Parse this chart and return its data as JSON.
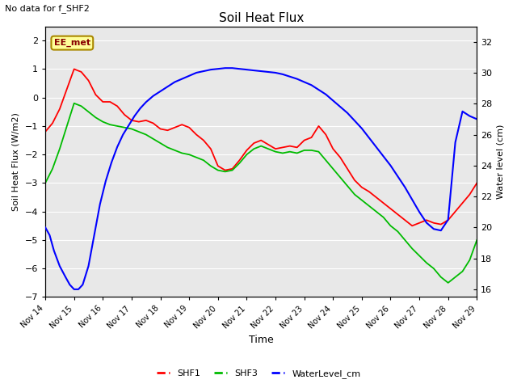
{
  "title": "Soil Heat Flux",
  "note": "No data for f_SHF2",
  "ylabel_left": "Soil Heat Flux (W/m2)",
  "ylabel_right": "Water level (cm)",
  "xlabel": "Time",
  "ylim_left": [
    -7.0,
    2.5
  ],
  "ylim_right": [
    15.5,
    33
  ],
  "yticks_left": [
    -7.0,
    -6.0,
    -5.0,
    -4.0,
    -3.0,
    -2.0,
    -1.0,
    0.0,
    1.0,
    2.0
  ],
  "yticks_right": [
    16,
    18,
    20,
    22,
    24,
    26,
    28,
    30,
    32
  ],
  "xtick_labels": [
    "Nov 14",
    "Nov 15",
    "Nov 16",
    "Nov 17",
    "Nov 18",
    "Nov 19",
    "Nov 20",
    "Nov 21",
    "Nov 22",
    "Nov 23",
    "Nov 24",
    "Nov 25",
    "Nov 26",
    "Nov 27",
    "Nov 28",
    "Nov 29"
  ],
  "color_shf1": "#ff0000",
  "color_shf3": "#00bb00",
  "color_water": "#0000ff",
  "background_color": "#ffffff",
  "plot_bg": "#e8e8e8",
  "ee_met_bg": "#ffff99",
  "ee_met_border": "#aa8800",
  "ee_met_text": "#880000",
  "shf1_x": [
    0,
    0.25,
    0.5,
    0.75,
    1.0,
    1.25,
    1.5,
    1.75,
    2.0,
    2.25,
    2.5,
    2.75,
    3.0,
    3.25,
    3.5,
    3.75,
    4.0,
    4.25,
    4.5,
    4.75,
    5.0,
    5.25,
    5.5,
    5.75,
    6.0,
    6.25,
    6.5,
    6.75,
    7.0,
    7.25,
    7.5,
    7.75,
    8.0,
    8.25,
    8.5,
    8.75,
    9.0,
    9.25,
    9.5,
    9.75,
    10.0,
    10.25,
    10.5,
    10.75,
    11.0,
    11.25,
    11.5,
    11.75,
    12.0,
    12.25,
    12.5,
    12.75,
    13.0,
    13.25,
    13.5,
    13.75,
    14.0,
    14.25,
    14.5,
    14.75,
    15.0
  ],
  "shf1_y": [
    -1.2,
    -0.9,
    -0.4,
    0.3,
    1.0,
    0.9,
    0.6,
    0.1,
    -0.15,
    -0.15,
    -0.3,
    -0.6,
    -0.8,
    -0.85,
    -0.8,
    -0.9,
    -1.1,
    -1.15,
    -1.05,
    -0.95,
    -1.05,
    -1.3,
    -1.5,
    -1.8,
    -2.4,
    -2.55,
    -2.5,
    -2.2,
    -1.85,
    -1.6,
    -1.5,
    -1.65,
    -1.8,
    -1.75,
    -1.7,
    -1.75,
    -1.5,
    -1.4,
    -1.0,
    -1.3,
    -1.8,
    -2.1,
    -2.5,
    -2.9,
    -3.15,
    -3.3,
    -3.5,
    -3.7,
    -3.9,
    -4.1,
    -4.3,
    -4.5,
    -4.4,
    -4.3,
    -4.4,
    -4.45,
    -4.3,
    -4.0,
    -3.7,
    -3.4,
    -3.0
  ],
  "shf3_x": [
    0,
    0.25,
    0.5,
    0.75,
    1.0,
    1.25,
    1.5,
    1.75,
    2.0,
    2.25,
    2.5,
    2.75,
    3.0,
    3.25,
    3.5,
    3.75,
    4.0,
    4.25,
    4.5,
    4.75,
    5.0,
    5.25,
    5.5,
    5.75,
    6.0,
    6.25,
    6.5,
    6.75,
    7.0,
    7.25,
    7.5,
    7.75,
    8.0,
    8.25,
    8.5,
    8.75,
    9.0,
    9.25,
    9.5,
    9.75,
    10.0,
    10.25,
    10.5,
    10.75,
    11.0,
    11.25,
    11.5,
    11.75,
    12.0,
    12.25,
    12.5,
    12.75,
    13.0,
    13.25,
    13.5,
    13.75,
    14.0,
    14.25,
    14.5,
    14.75,
    15.0
  ],
  "shf3_y": [
    -3.0,
    -2.5,
    -1.8,
    -1.0,
    -0.2,
    -0.3,
    -0.5,
    -0.7,
    -0.85,
    -0.95,
    -1.0,
    -1.05,
    -1.1,
    -1.2,
    -1.3,
    -1.45,
    -1.6,
    -1.75,
    -1.85,
    -1.95,
    -2.0,
    -2.1,
    -2.2,
    -2.4,
    -2.55,
    -2.6,
    -2.55,
    -2.3,
    -2.0,
    -1.8,
    -1.7,
    -1.8,
    -1.9,
    -1.95,
    -1.9,
    -1.95,
    -1.85,
    -1.85,
    -1.9,
    -2.2,
    -2.5,
    -2.8,
    -3.1,
    -3.4,
    -3.6,
    -3.8,
    -4.0,
    -4.2,
    -4.5,
    -4.7,
    -5.0,
    -5.3,
    -5.55,
    -5.8,
    -6.0,
    -6.3,
    -6.5,
    -6.3,
    -6.1,
    -5.7,
    -5.0
  ],
  "water_x": [
    0,
    0.15,
    0.3,
    0.5,
    0.7,
    0.85,
    1.0,
    1.15,
    1.3,
    1.5,
    1.7,
    1.9,
    2.1,
    2.3,
    2.5,
    2.7,
    2.9,
    3.1,
    3.3,
    3.5,
    3.75,
    4.0,
    4.25,
    4.5,
    4.75,
    5.0,
    5.25,
    5.5,
    5.75,
    6.0,
    6.25,
    6.5,
    6.75,
    7.0,
    7.25,
    7.5,
    7.75,
    8.0,
    8.25,
    8.5,
    8.75,
    9.0,
    9.25,
    9.5,
    9.75,
    10.0,
    10.25,
    10.5,
    10.75,
    11.0,
    11.25,
    11.5,
    11.75,
    12.0,
    12.25,
    12.5,
    12.75,
    13.0,
    13.25,
    13.5,
    13.75,
    14.0,
    14.25,
    14.5,
    14.75,
    15.0
  ],
  "water_y": [
    20.0,
    19.5,
    18.5,
    17.5,
    16.8,
    16.3,
    16.0,
    16.0,
    16.3,
    17.5,
    19.5,
    21.5,
    23.0,
    24.2,
    25.2,
    26.0,
    26.6,
    27.2,
    27.7,
    28.1,
    28.5,
    28.8,
    29.1,
    29.4,
    29.6,
    29.8,
    30.0,
    30.1,
    30.2,
    30.25,
    30.3,
    30.3,
    30.25,
    30.2,
    30.15,
    30.1,
    30.05,
    30.0,
    29.9,
    29.75,
    29.6,
    29.4,
    29.2,
    28.9,
    28.6,
    28.2,
    27.8,
    27.4,
    26.9,
    26.4,
    25.8,
    25.2,
    24.6,
    24.0,
    23.3,
    22.6,
    21.8,
    21.0,
    20.3,
    19.9,
    19.8,
    20.5,
    25.5,
    27.5,
    27.2,
    27.0
  ]
}
